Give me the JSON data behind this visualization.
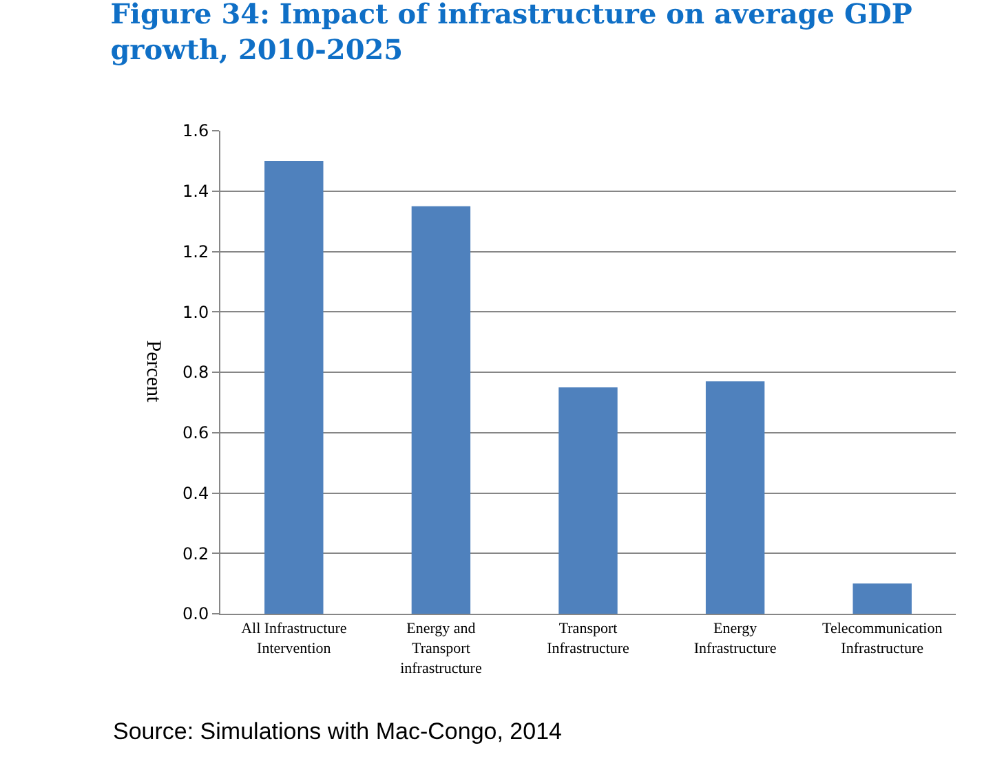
{
  "chart_data": {
    "type": "bar",
    "title": "Figure 34: Impact of infrastructure on average GDP growth, 2010-2025",
    "ylabel": "Percent",
    "categories": [
      "All Infrastructure\nIntervention",
      "Energy and\nTransport\ninfrastructure",
      "Transport\nInfrastructure",
      "Energy\nInfrastructure",
      "Telecommunication\nInfrastructure"
    ],
    "values": [
      1.5,
      1.35,
      0.75,
      0.77,
      0.1
    ],
    "color": "#4f81bd",
    "ylim": [
      0,
      1.6
    ],
    "yticks": [
      {
        "value": 0,
        "label": "0.0"
      },
      {
        "value": 0.2,
        "label": "0.2"
      },
      {
        "value": 0.4,
        "label": "0.4"
      },
      {
        "value": 0.6,
        "label": "0.6"
      },
      {
        "value": 0.8,
        "label": "0.8"
      },
      {
        "value": 1.0,
        "label": "1.0"
      },
      {
        "value": 1.2,
        "label": "1.2"
      },
      {
        "value": 1.4,
        "label": "1.4"
      },
      {
        "value": 1.6,
        "label": "1.6"
      }
    ],
    "grid": "y",
    "annotations": [
      "Source: Simulations with Mac-Congo, 2014"
    ]
  }
}
